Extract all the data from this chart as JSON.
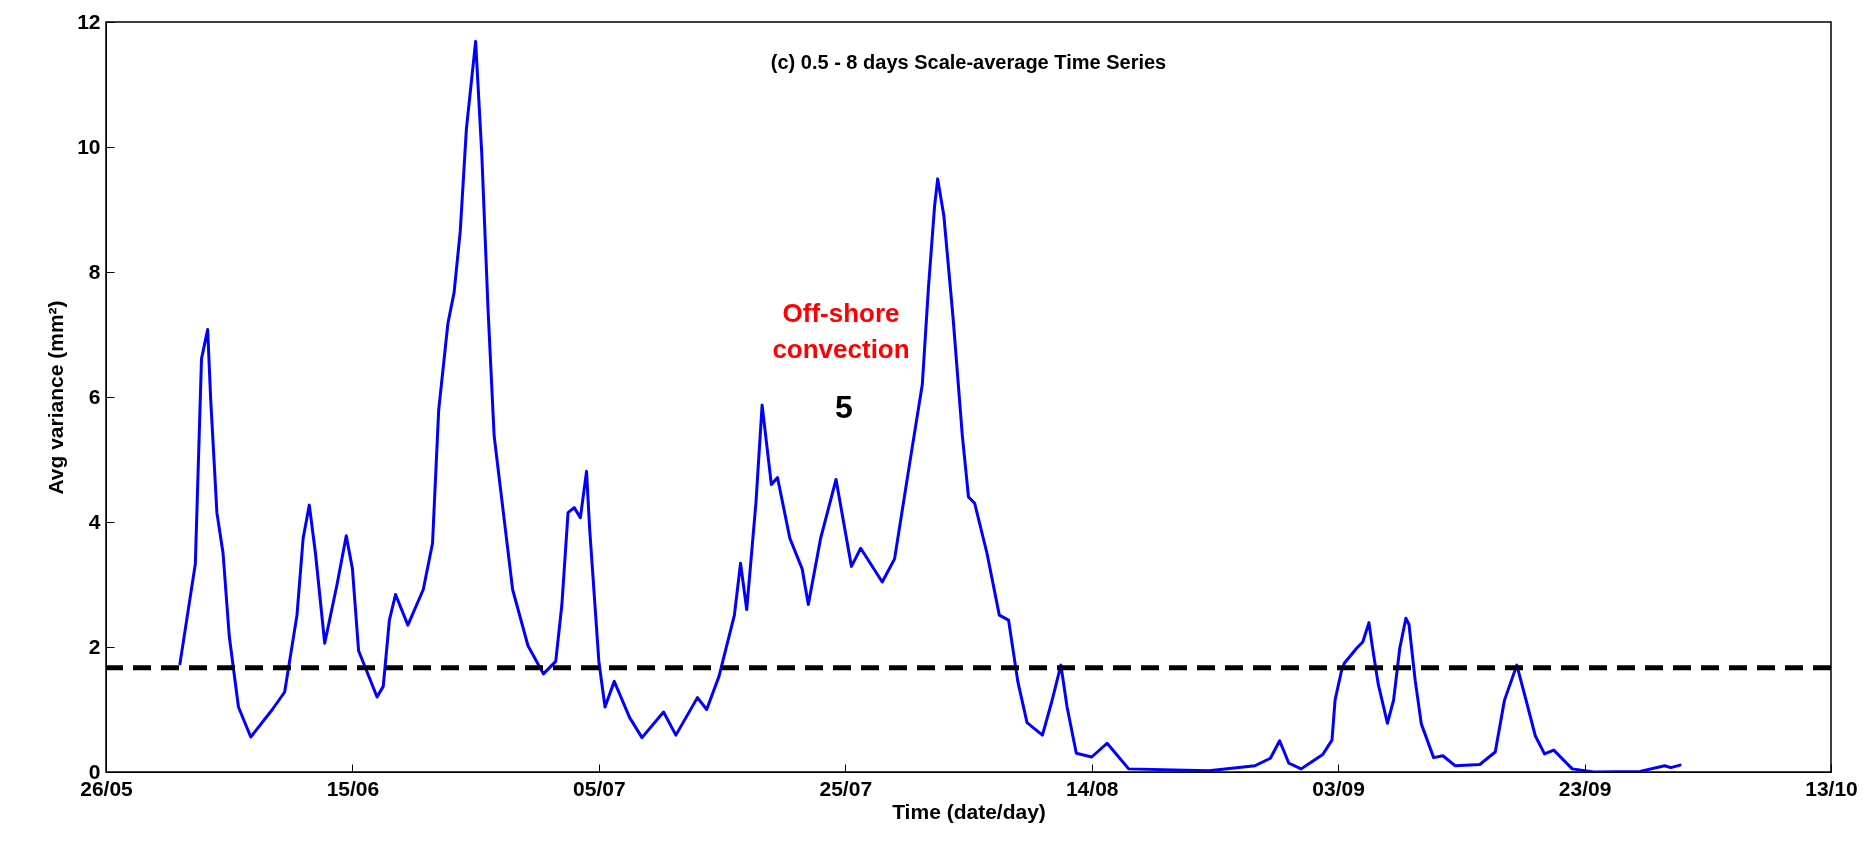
{
  "chart_data": {
    "type": "line",
    "title": "(c) 0.5 - 8 days Scale-average Time Series",
    "xlabel": "Time (date/day)",
    "ylabel": "Avg variance (mm²)",
    "x": [
      "--06-01T00:00",
      "--06-02T06:00",
      "--06-02T12:00",
      "--06-02T18:00",
      "--06-03T06:00",
      "--06-03T12:00",
      "--06-04T00:00",
      "--06-04T12:00",
      "--06-05T00:00",
      "--06-05T18:00",
      "--06-06T18:00",
      "--06-08T12:00",
      "--06-09T12:00",
      "--06-10T12:00",
      "--06-11T00:00",
      "--06-11T12:00",
      "--06-12T00:00",
      "--06-12T18:00",
      "--06-13T18:00",
      "--06-14T12:00",
      "--06-15T00:00",
      "--06-15T12:00",
      "--06-17T00:00",
      "--06-17T12:00",
      "--06-18T00:00",
      "--06-18T12:00",
      "--06-19T12:00",
      "--06-20T18:00",
      "--06-21T12:00",
      "--06-22T00:00",
      "--06-22T18:00",
      "--06-23T06:00",
      "--06-23T18:00",
      "--06-24T06:00",
      "--06-25T00:00",
      "--06-25T12:00",
      "--06-26T00:00",
      "--06-26T12:00",
      "--06-27T06:00",
      "--06-28T00:00",
      "--06-29T06:00",
      "--06-30T12:00",
      "--07-01T12:00",
      "--07-02T00:00",
      "--07-02T12:00",
      "--07-03T00:00",
      "--07-03T12:00",
      "--07-04T00:00",
      "--07-04T06:00",
      "--07-05T00:00",
      "--07-05T12:00",
      "--07-06T06:00",
      "--07-07T12:00",
      "--07-08T12:00",
      "--07-10T06:00",
      "--07-11T06:00",
      "--07-13T00:00",
      "--07-13T18:00",
      "--07-14T18:00",
      "--07-16T00:00",
      "--07-16T12:00",
      "--07-17T00:00",
      "--07-17T18:00",
      "--07-18T06:00",
      "--07-19T00:00",
      "--07-19T12:00",
      "--07-20T12:00",
      "--07-21T12:00",
      "--07-22T00:00",
      "--07-23T00:00",
      "--07-24T06:00",
      "--07-25T12:00",
      "--07-26T06:00",
      "--07-28T00:00",
      "--07-29T00:00",
      "--07-30T06:00",
      "--07-31T06:00",
      "--07-31T18:00",
      "--08-01T06:00",
      "--08-01T12:00",
      "--08-02T00:00",
      "--08-02T18:00",
      "--08-03T12:00",
      "--08-04T00:00",
      "--08-04T12:00",
      "--08-05T12:00",
      "--08-06T12:00",
      "--08-07T06:00",
      "--08-08T00:00",
      "--08-08T18:00",
      "--08-10T00:00",
      "--08-10T18:00",
      "--08-11T12:00",
      "--08-12T00:00",
      "--08-12T18:00",
      "--08-14T00:00",
      "--08-15T06:00",
      "--08-17T00:00",
      "--08-23T12:00",
      "--08-27T06:00",
      "--08-28T12:00",
      "--08-29T06:00",
      "--08-30T00:00",
      "--08-31T00:00",
      "--09-01T18:00",
      "--09-02T12:00",
      "--09-02T18:00",
      "--09-03T06:00",
      "--09-03T12:00",
      "--09-04T12:00",
      "--09-05T00:00",
      "--09-05T12:00",
      "--09-05T18:00",
      "--09-06T06:00",
      "--09-07T00:00",
      "--09-07T12:00",
      "--09-08T00:00",
      "--09-08T12:00",
      "--09-08T18:00",
      "--09-09T06:00",
      "--09-09T18:00",
      "--09-10T18:00",
      "--09-11T12:00",
      "--09-12T12:00",
      "--09-14T12:00",
      "--09-15T18:00",
      "--09-16T12:00",
      "--09-17T12:00",
      "--09-18T06:00",
      "--09-19T00:00",
      "--09-19T18:00",
      "--09-20T12:00",
      "--09-22T00:00",
      "--09-23T18:00",
      "--09-27T12:00",
      "--09-29T12:00",
      "--09-30T00:00",
      "--09-30T18:00"
    ],
    "series": [
      {
        "color": "#0000ff",
        "values": [
          1.73,
          3.33,
          4.97,
          6.61,
          7.08,
          5.95,
          4.15,
          3.5,
          2.18,
          1.04,
          0.56,
          1.0,
          1.28,
          2.51,
          3.74,
          4.27,
          3.5,
          2.06,
          3.0,
          3.78,
          3.25,
          1.94,
          1.2,
          1.37,
          2.43,
          2.84,
          2.35,
          2.92,
          3.66,
          5.79,
          7.18,
          7.67,
          8.65,
          10.29,
          11.69,
          9.88,
          7.43,
          5.38,
          4.15,
          2.92,
          2.02,
          1.57,
          1.77,
          2.68,
          4.15,
          4.23,
          4.07,
          4.81,
          3.9,
          1.77,
          1.04,
          1.45,
          0.87,
          0.55,
          0.96,
          0.59,
          1.19,
          1.0,
          1.53,
          2.51,
          3.34,
          2.6,
          4.31,
          5.87,
          4.6,
          4.71,
          3.74,
          3.25,
          2.68,
          3.74,
          4.68,
          3.29,
          3.58,
          3.04,
          3.41,
          4.97,
          6.2,
          7.75,
          9.06,
          9.49,
          8.9,
          7.26,
          5.38,
          4.4,
          4.3,
          3.5,
          2.51,
          2.43,
          1.45,
          0.79,
          0.59,
          1.12,
          1.71,
          1.04,
          0.3,
          0.24,
          0.46,
          0.05,
          0.02,
          0.1,
          0.22,
          0.5,
          0.14,
          0.05,
          0.28,
          0.51,
          1.15,
          1.6,
          1.74,
          1.98,
          2.08,
          2.39,
          2.04,
          1.41,
          0.78,
          1.15,
          1.98,
          2.46,
          2.36,
          1.47,
          0.77,
          0.23,
          0.26,
          0.1,
          0.12,
          0.32,
          1.15,
          1.71,
          1.15,
          0.58,
          0.29,
          0.35,
          0.05,
          0.0,
          0.01,
          0.1,
          0.07,
          0.11
        ]
      }
    ],
    "xlim": [
      "--05-26",
      "--10-13"
    ],
    "xticks": [
      {
        "value": "--05-26",
        "label": "26/05"
      },
      {
        "value": "--06-15",
        "label": "15/06"
      },
      {
        "value": "--07-05",
        "label": "05/07"
      },
      {
        "value": "--07-25",
        "label": "25/07"
      },
      {
        "value": "--08-14",
        "label": "14/08"
      },
      {
        "value": "--09-03",
        "label": "03/09"
      },
      {
        "value": "--09-23",
        "label": "23/09"
      },
      {
        "value": "--10-13",
        "label": "13/10"
      }
    ],
    "ylim": [
      0,
      12
    ],
    "yticks": [
      0,
      2,
      4,
      6,
      8,
      10,
      12
    ],
    "grid": false,
    "line_style": "solid",
    "ref_lines": [
      {
        "axis": "y",
        "value": 1.67,
        "color": "#000000",
        "line_style": "dashed"
      }
    ],
    "annotations": [
      "Off-shore\nconvection",
      "5"
    ]
  }
}
